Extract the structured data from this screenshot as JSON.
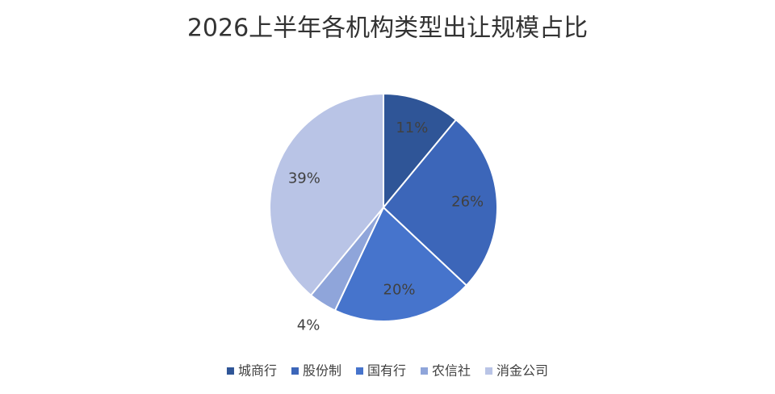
{
  "chart_data": {
    "type": "pie",
    "title": "2026上半年各机构类型出让规模占比",
    "categories": [
      "城商行",
      "股份制",
      "国有行",
      "农信社",
      "消金公司"
    ],
    "values": [
      11,
      26,
      20,
      4,
      39
    ],
    "value_labels": [
      "11%",
      "26%",
      "20%",
      "4%",
      "39%"
    ],
    "colors": [
      "#2f5597",
      "#3c66b9",
      "#4674cc",
      "#8fa5da",
      "#b9c4e6"
    ],
    "legend": "bottom"
  }
}
